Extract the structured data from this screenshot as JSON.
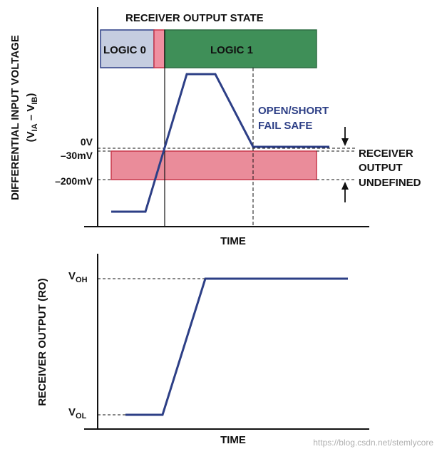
{
  "top": {
    "state_title": "RECEIVER OUTPUT STATE",
    "logic0_label": "LOGIC 0",
    "logic1_label": "LOGIC 1",
    "y_axis_label_line1": "DIFFERENTIAL INPUT VOLTAGE",
    "y_axis_label_line2_pre": "(V",
    "y_axis_label_sub1": "IA",
    "y_axis_label_mid": " – V",
    "y_axis_label_sub2": "IB",
    "y_axis_label_post": ")",
    "tick_0v": "0V",
    "tick_30mv": "–30mV",
    "tick_200mv": "–200mV",
    "failsafe_line1": "OPEN/SHORT",
    "failsafe_line2": "FAIL SAFE",
    "undefined_line1": "RECEIVER",
    "undefined_line2": "OUTPUT",
    "undefined_line3": "UNDEFINED",
    "x_axis_label": "TIME"
  },
  "bottom": {
    "y_axis_label": "RECEIVER OUTPUT (RO)",
    "voh_main": "V",
    "voh_sub": "OH",
    "vol_main": "V",
    "vol_sub": "OL",
    "x_axis_label": "TIME"
  },
  "watermark": "https://blog.csdn.net/stemlycore",
  "colors": {
    "logic0_fill": "#c5cde0",
    "logic0_border": "#2d3f86",
    "transition_fill": "#ef8fa0",
    "logic1_fill": "#3f8f58",
    "undefined_band_fill": "#ea8c9a",
    "undefined_band_border": "#c8364a",
    "signal": "#2d3f86"
  }
}
